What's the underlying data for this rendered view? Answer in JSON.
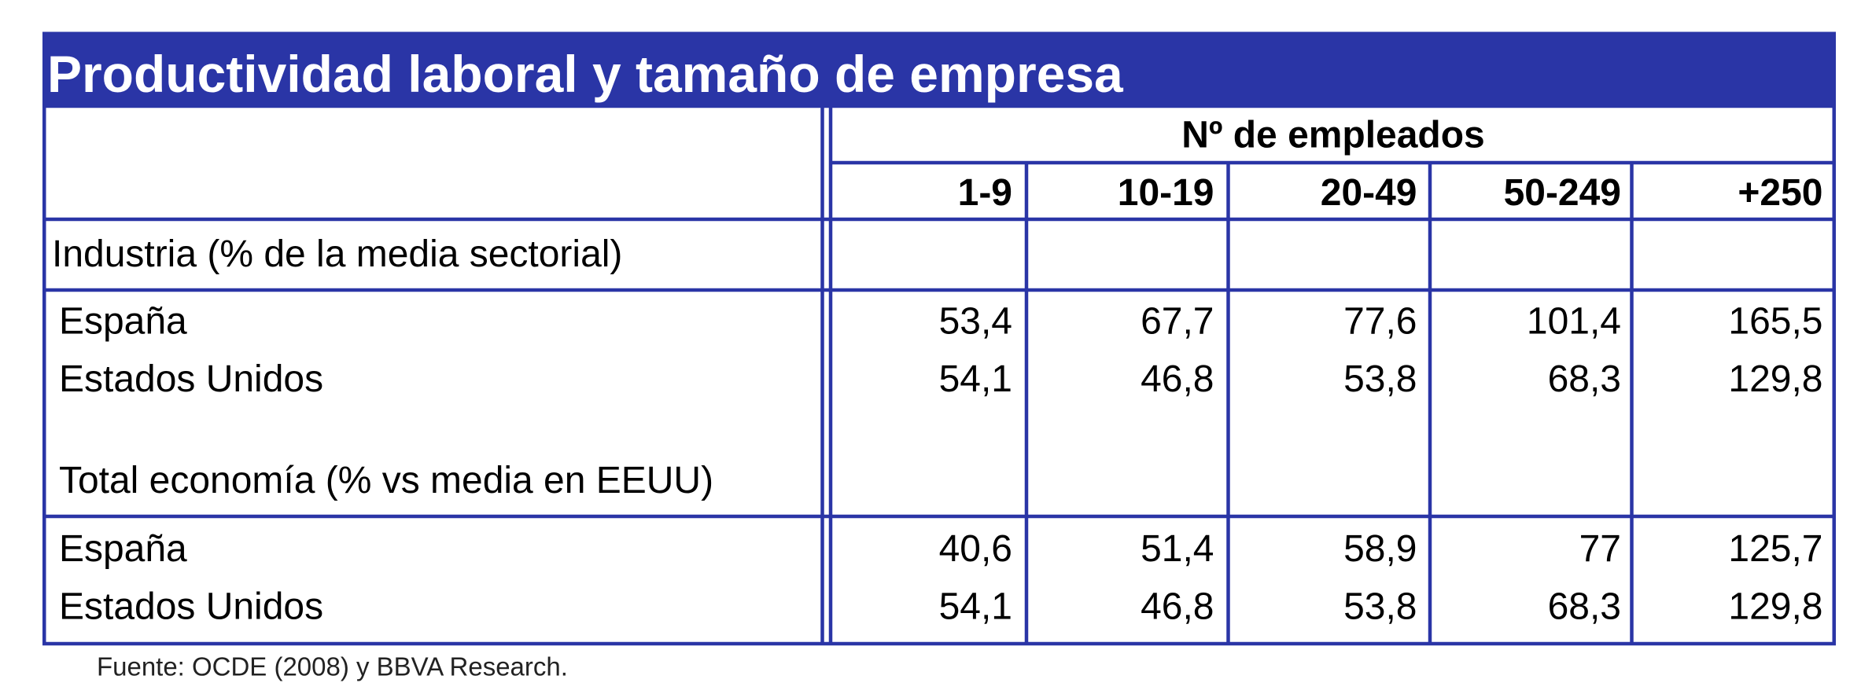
{
  "title": "Productividad laboral y tamaño de empresa",
  "table": {
    "group_header": "Nº de empleados",
    "columns": [
      "1-9",
      "10-19",
      "20-49",
      "50-249",
      "+250"
    ],
    "sections": [
      {
        "label": "Industria (% de la media sectorial)",
        "rows": [
          {
            "label": "España",
            "values": [
              "53,4",
              "67,7",
              "77,6",
              "101,4",
              "165,5"
            ]
          },
          {
            "label": "Estados Unidos",
            "values": [
              "54,1",
              "46,8",
              "53,8",
              "68,3",
              "129,8"
            ]
          }
        ]
      },
      {
        "label": "Total economía (% vs media en EEUU)",
        "rows": [
          {
            "label": "España",
            "values": [
              "40,6",
              "51,4",
              "58,9",
              "77",
              "125,7"
            ]
          },
          {
            "label": "Estados Unidos",
            "values": [
              "54,1",
              "46,8",
              "53,8",
              "68,3",
              "129,8"
            ]
          }
        ]
      }
    ]
  },
  "source": "Fuente: OCDE (2008) y BBVA Research."
}
